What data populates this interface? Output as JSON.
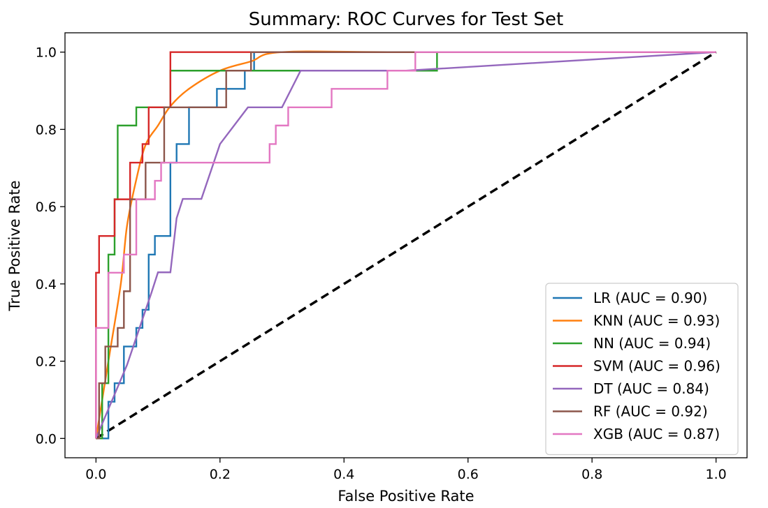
{
  "chart_data": {
    "type": "line",
    "title": "Summary: ROC Curves for Test Set",
    "xlabel": "False Positive Rate",
    "ylabel": "True Positive Rate",
    "xlim": [
      -0.05,
      1.05
    ],
    "ylim": [
      -0.05,
      1.05
    ],
    "xticks": [
      0.0,
      0.2,
      0.4,
      0.6,
      0.8,
      1.0
    ],
    "yticks": [
      0.0,
      0.2,
      0.4,
      0.6,
      0.8,
      1.0
    ],
    "xtick_labels": [
      "0.0",
      "0.2",
      "0.4",
      "0.6",
      "0.8",
      "1.0"
    ],
    "ytick_labels": [
      "0.0",
      "0.2",
      "0.4",
      "0.6",
      "0.8",
      "1.0"
    ],
    "grid": false,
    "legend_position": "lower-right",
    "series": [
      {
        "name": "LR (AUC = 0.90)",
        "color": "#1f77b4",
        "x": [
          0,
          0.02,
          0.02,
          0.03,
          0.03,
          0.045,
          0.045,
          0.065,
          0.065,
          0.075,
          0.075,
          0.085,
          0.085,
          0.095,
          0.095,
          0.105,
          0.105,
          0.12,
          0.12,
          0.13,
          0.13,
          0.15,
          0.15,
          0.195,
          0.195,
          0.22,
          0.22,
          0.24,
          0.24,
          0.255,
          0.255,
          0.26,
          0.26,
          1.0
        ],
        "y": [
          0,
          0,
          0.095,
          0.095,
          0.143,
          0.143,
          0.238,
          0.238,
          0.286,
          0.286,
          0.333,
          0.333,
          0.476,
          0.476,
          0.524,
          0.524,
          0.524,
          0.524,
          0.714,
          0.714,
          0.762,
          0.762,
          0.857,
          0.857,
          0.905,
          0.905,
          0.905,
          0.905,
          0.952,
          0.952,
          1.0,
          1.0,
          1.0,
          1.0
        ]
      },
      {
        "name": "KNN (AUC = 0.93)",
        "color": "#ff7f0e",
        "x": [
          0,
          0.02,
          0.04,
          0.05,
          0.065,
          0.08,
          0.1,
          0.12,
          0.15,
          0.2,
          0.25,
          0.3,
          0.5,
          1.0
        ],
        "y": [
          0,
          0.2,
          0.4,
          0.55,
          0.67,
          0.76,
          0.81,
          0.86,
          0.905,
          0.952,
          0.976,
          1.0,
          1.0,
          1.0
        ],
        "smooth": true
      },
      {
        "name": "NN (AUC = 0.94)",
        "color": "#2ca02c",
        "x": [
          0,
          0.01,
          0.01,
          0.02,
          0.02,
          0.03,
          0.03,
          0.035,
          0.035,
          0.065,
          0.065,
          0.11,
          0.11,
          0.12,
          0.12,
          0.55,
          0.55,
          1.0
        ],
        "y": [
          0,
          0,
          0.143,
          0.143,
          0.476,
          0.476,
          0.619,
          0.619,
          0.81,
          0.81,
          0.857,
          0.857,
          0.857,
          0.857,
          0.952,
          0.952,
          1.0,
          1.0
        ]
      },
      {
        "name": "SVM (AUC = 0.96)",
        "color": "#d62728",
        "x": [
          0,
          0,
          0.005,
          0.005,
          0.03,
          0.03,
          0.055,
          0.055,
          0.075,
          0.075,
          0.085,
          0.085,
          0.12,
          0.12,
          1.0
        ],
        "y": [
          0,
          0.429,
          0.429,
          0.524,
          0.524,
          0.619,
          0.619,
          0.714,
          0.714,
          0.762,
          0.762,
          0.857,
          0.857,
          1.0,
          1.0
        ]
      },
      {
        "name": "DT (AUC = 0.84)",
        "color": "#9467bd",
        "x": [
          0,
          0.05,
          0.09,
          0.1,
          0.12,
          0.13,
          0.14,
          0.17,
          0.2,
          0.245,
          0.3,
          0.33,
          0.5,
          1.0
        ],
        "y": [
          0,
          0.19,
          0.38,
          0.43,
          0.43,
          0.57,
          0.62,
          0.62,
          0.762,
          0.857,
          0.857,
          0.952,
          0.952,
          1.0
        ]
      },
      {
        "name": "RF (AUC = 0.92)",
        "color": "#8c564b",
        "x": [
          0,
          0.005,
          0.005,
          0.015,
          0.015,
          0.035,
          0.035,
          0.045,
          0.045,
          0.055,
          0.055,
          0.08,
          0.08,
          0.11,
          0.11,
          0.21,
          0.21,
          0.25,
          0.25,
          1.0
        ],
        "y": [
          0,
          0,
          0.143,
          0.143,
          0.238,
          0.238,
          0.286,
          0.286,
          0.381,
          0.381,
          0.619,
          0.619,
          0.714,
          0.714,
          0.857,
          0.857,
          0.952,
          0.952,
          1.0,
          1.0
        ]
      },
      {
        "name": "XGB (AUC = 0.87)",
        "color": "#e377c2",
        "x": [
          0,
          0,
          0.02,
          0.02,
          0.045,
          0.045,
          0.065,
          0.065,
          0.095,
          0.095,
          0.105,
          0.105,
          0.28,
          0.28,
          0.29,
          0.29,
          0.31,
          0.31,
          0.38,
          0.38,
          0.47,
          0.47,
          0.515,
          0.515,
          1.0
        ],
        "y": [
          0,
          0.286,
          0.286,
          0.429,
          0.429,
          0.476,
          0.476,
          0.619,
          0.619,
          0.667,
          0.667,
          0.714,
          0.714,
          0.762,
          0.762,
          0.81,
          0.81,
          0.857,
          0.857,
          0.905,
          0.905,
          0.952,
          0.952,
          1.0,
          1.0
        ]
      }
    ],
    "reference_line": {
      "color": "#000000",
      "style": "dashed",
      "x": [
        0,
        1
      ],
      "y": [
        0,
        1
      ]
    }
  }
}
